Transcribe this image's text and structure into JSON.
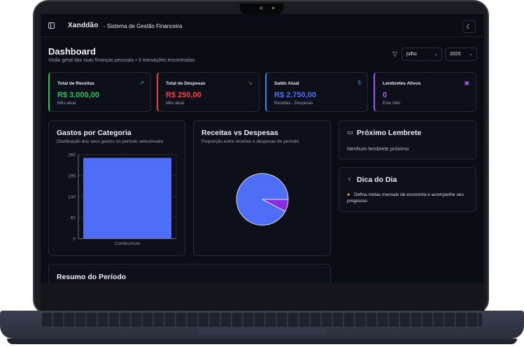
{
  "app": {
    "brand": "Xanddão",
    "brand_subtitle": "- Sistema de Gestão Financeira"
  },
  "page": {
    "title": "Dashboard",
    "subtitle": "Visão geral das suas finanças pessoais • 3 transações encontradas"
  },
  "filters": {
    "month": "julho",
    "year": "2025"
  },
  "stats": [
    {
      "label": "Total de Receitas",
      "value": "R$ 3.000,00",
      "sub": "Mês atual",
      "color": "#22c55e",
      "icon": "trending-up-icon"
    },
    {
      "label": "Total de Despesas",
      "value": "R$ 250,00",
      "sub": "Mês atual",
      "color": "#ef4444",
      "icon": "trending-down-icon"
    },
    {
      "label": "Saldo Atual",
      "value": "R$ 2.750,00",
      "sub": "Receitas - Despesas",
      "color": "#3b82f6",
      "icon": "dollar-icon"
    },
    {
      "label": "Lembretes Ativos",
      "value": "0",
      "sub": "Este mês",
      "color": "#a855f7",
      "icon": "calendar-icon"
    }
  ],
  "gastos": {
    "title": "Gastos por Categoria",
    "subtitle": "Distribuição dos seus gastos no período selecionado"
  },
  "receitas_despesas": {
    "title": "Receitas vs Despesas",
    "subtitle": "Proporção entre receitas e despesas do período"
  },
  "lembrete": {
    "title": "Próximo Lembrete",
    "text": "Nenhum lembrete próximo"
  },
  "dica": {
    "title": "Dica do Dia",
    "text_line1": "Defina metas mensais de economia e acompanhe seu",
    "text_line2": "progresso"
  },
  "resumo": {
    "title": "Resumo do Período"
  },
  "chart_data": [
    {
      "type": "bar",
      "categories": [
        "Combustível"
      ],
      "values": [
        250
      ],
      "ylim": [
        0,
        260
      ],
      "yticks": [
        "0",
        "65",
        "130",
        "195",
        "260"
      ],
      "grid": true,
      "color": "#4f6ef7"
    },
    {
      "type": "pie",
      "labels": [
        "",
        ""
      ],
      "values": [
        3000,
        250
      ],
      "colors": [
        "#4f6ef7",
        "#8b2be2"
      ]
    }
  ]
}
